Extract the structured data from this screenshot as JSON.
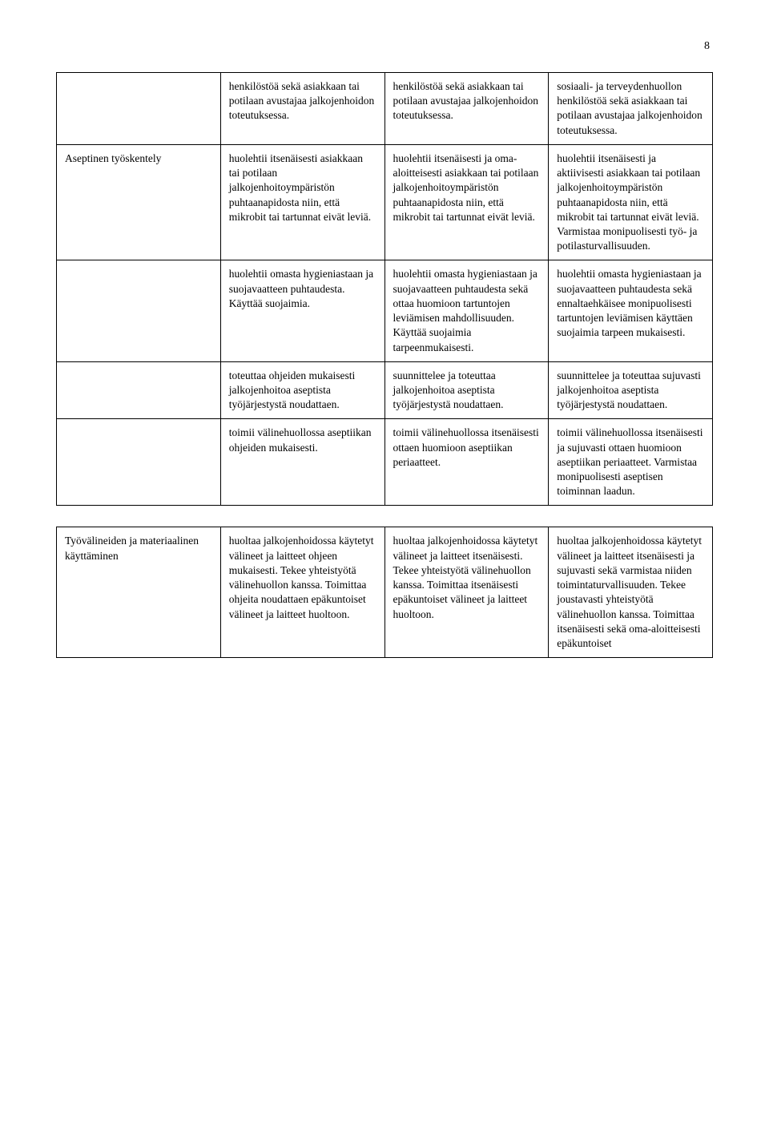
{
  "page_number": "8",
  "table1": {
    "rows": [
      {
        "label": "",
        "c1": "henkilöstöä sekä asiakkaan tai potilaan avustajaa jalkojenhoidon toteutuksessa.",
        "c2": "henkilöstöä sekä asiakkaan tai potilaan avustajaa jalkojenhoidon toteutuksessa.",
        "c3": "sosiaali- ja terveydenhuollon henkilöstöä sekä asiakkaan tai potilaan avustajaa jalkojenhoidon toteutuksessa."
      },
      {
        "label": "Aseptinen työskentely",
        "c1": "huolehtii itsenäisesti asiakkaan tai potilaan jalkojenhoitoympäristön puhtaanapidosta niin, että mikrobit tai tartunnat eivät leviä.",
        "c2": "huolehtii itsenäisesti ja oma-aloitteisesti asiakkaan tai potilaan jalkojenhoitoympäristön puhtaanapidosta niin, että mikrobit tai tartunnat eivät leviä.",
        "c3": "huolehtii itsenäisesti ja aktiivisesti asiakkaan tai potilaan jalkojenhoitoympäristön puhtaanapidosta niin, että mikrobit tai tartunnat eivät leviä. Varmistaa monipuolisesti työ- ja potilasturvallisuuden."
      },
      {
        "label": "",
        "c1": "huolehtii omasta hygieniastaan ja suojavaatteen puhtaudesta. Käyttää suojaimia.",
        "c2": "huolehtii omasta hygieniastaan ja suojavaatteen puhtaudesta sekä ottaa huomioon tartuntojen leviämisen mahdollisuuden. Käyttää suojaimia tarpeenmukaisesti.",
        "c3": "huolehtii omasta hygieniastaan ja suojavaatteen puhtaudesta sekä ennaltaehkäisee monipuolisesti tartuntojen leviämisen käyttäen suojaimia tarpeen mukaisesti."
      },
      {
        "label": "",
        "c1": "toteuttaa ohjeiden mukaisesti jalkojenhoitoa aseptista työjärjestystä noudattaen.",
        "c2": "suunnittelee ja toteuttaa jalkojenhoitoa aseptista työjärjestystä noudattaen.",
        "c3": "suunnittelee ja toteuttaa sujuvasti jalkojenhoitoa aseptista työjärjestystä noudattaen."
      },
      {
        "label": "",
        "c1": "toimii välinehuollossa aseptiikan ohjeiden mukaisesti.",
        "c2": "toimii välinehuollossa itsenäisesti ottaen huomioon aseptiikan periaatteet.",
        "c3": "toimii välinehuollossa itsenäisesti ja sujuvasti ottaen huomioon aseptiikan periaatteet. Varmistaa monipuolisesti aseptisen toiminnan laadun."
      }
    ]
  },
  "table2": {
    "rows": [
      {
        "label": "Työvälineiden ja materiaalinen käyttäminen",
        "c1": "huoltaa jalkojenhoidossa käytetyt välineet ja laitteet ohjeen mukaisesti. Tekee yhteistyötä välinehuollon kanssa. Toimittaa ohjeita noudattaen epäkuntoiset välineet ja laitteet huoltoon.",
        "c2": "huoltaa jalkojenhoidossa käytetyt välineet ja laitteet itsenäisesti. Tekee yhteistyötä välinehuollon kanssa. Toimittaa itsenäisesti epäkuntoiset välineet ja laitteet huoltoon.",
        "c3": "huoltaa jalkojenhoidossa käytetyt välineet ja laitteet itsenäisesti ja sujuvasti sekä varmistaa niiden toimintaturvallisuuden. Tekee joustavasti yhteistyötä välinehuollon kanssa. Toimittaa itsenäisesti sekä oma-aloitteisesti epäkuntoiset"
      }
    ]
  }
}
